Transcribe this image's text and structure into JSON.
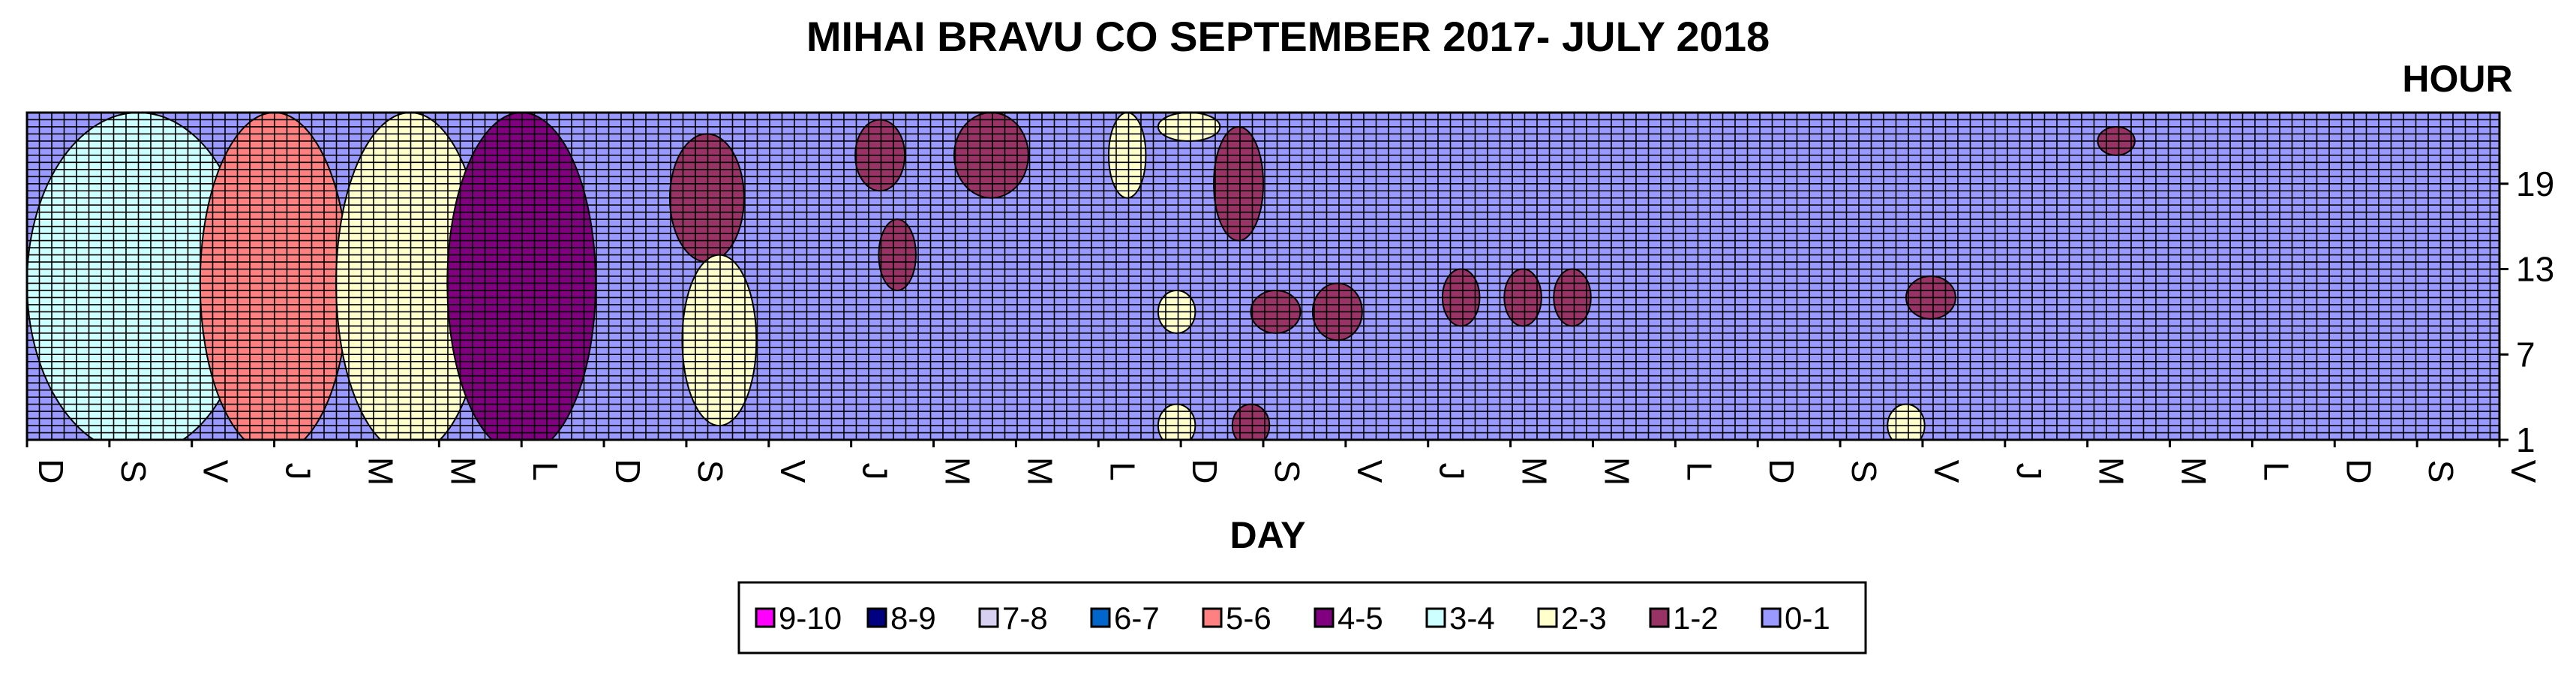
{
  "chart_data": {
    "type": "heatmap",
    "title": "MIHAI BRAVU CO SEPTEMBER 2017- JULY 2018",
    "xlabel": "DAY",
    "ylabel": "HOUR",
    "x_tick_labels": [
      "D",
      "S",
      "V",
      "J",
      "M",
      "M",
      "L",
      "D",
      "S",
      "V",
      "J",
      "M",
      "M",
      "L",
      "D",
      "S",
      "V",
      "J",
      "M",
      "M",
      "L",
      "D",
      "S",
      "V",
      "J",
      "M",
      "M",
      "L",
      "D",
      "S",
      "V"
    ],
    "y_tick_labels": [
      "1",
      "7",
      "13",
      "19"
    ],
    "y_tick_values": [
      1,
      7,
      13,
      19
    ],
    "ylim": [
      1,
      24
    ],
    "grid": true,
    "legend_position": "bottom",
    "legend": [
      {
        "label": "9-10",
        "color": "#ff00ff"
      },
      {
        "label": "8-9",
        "color": "#000080"
      },
      {
        "label": "7-8",
        "color": "#d8d0f0"
      },
      {
        "label": "6-7",
        "color": "#0066cc"
      },
      {
        "label": "5-6",
        "color": "#ff8080"
      },
      {
        "label": "4-5",
        "color": "#800080"
      },
      {
        "label": "3-4",
        "color": "#ccffff"
      },
      {
        "label": "2-3",
        "color": "#ffffcc"
      },
      {
        "label": "1-2",
        "color": "#993366"
      },
      {
        "label": "0-1",
        "color": "#9999ff"
      }
    ],
    "background_level": "0-1",
    "hotspots": [
      {
        "day_frac": 0.045,
        "hour": 12,
        "w": 0.09,
        "h": 24,
        "level": "3-4"
      },
      {
        "day_frac": 0.1,
        "hour": 12,
        "w": 0.06,
        "h": 24,
        "level": "5-6"
      },
      {
        "day_frac": 0.155,
        "hour": 12,
        "w": 0.06,
        "h": 24,
        "level": "2-3"
      },
      {
        "day_frac": 0.2,
        "hour": 12,
        "w": 0.06,
        "h": 24,
        "level": "4-5"
      },
      {
        "day_frac": 0.275,
        "hour": 18,
        "w": 0.03,
        "h": 9,
        "level": "1-2"
      },
      {
        "day_frac": 0.28,
        "hour": 8,
        "w": 0.03,
        "h": 12,
        "level": "2-3"
      },
      {
        "day_frac": 0.345,
        "hour": 21,
        "w": 0.02,
        "h": 5,
        "level": "1-2"
      },
      {
        "day_frac": 0.352,
        "hour": 14,
        "w": 0.015,
        "h": 5,
        "level": "1-2"
      },
      {
        "day_frac": 0.39,
        "hour": 21,
        "w": 0.03,
        "h": 6,
        "level": "1-2"
      },
      {
        "day_frac": 0.445,
        "hour": 21,
        "w": 0.015,
        "h": 6,
        "level": "2-3"
      },
      {
        "day_frac": 0.47,
        "hour": 23,
        "w": 0.025,
        "h": 2,
        "level": "2-3"
      },
      {
        "day_frac": 0.49,
        "hour": 19,
        "w": 0.02,
        "h": 8,
        "level": "1-2"
      },
      {
        "day_frac": 0.465,
        "hour": 10,
        "w": 0.015,
        "h": 3,
        "level": "2-3"
      },
      {
        "day_frac": 0.505,
        "hour": 10,
        "w": 0.02,
        "h": 3,
        "level": "1-2"
      },
      {
        "day_frac": 0.53,
        "hour": 10,
        "w": 0.02,
        "h": 4,
        "level": "1-2"
      },
      {
        "day_frac": 0.58,
        "hour": 11,
        "w": 0.015,
        "h": 4,
        "level": "1-2"
      },
      {
        "day_frac": 0.605,
        "hour": 11,
        "w": 0.015,
        "h": 4,
        "level": "1-2"
      },
      {
        "day_frac": 0.625,
        "hour": 11,
        "w": 0.015,
        "h": 4,
        "level": "1-2"
      },
      {
        "day_frac": 0.465,
        "hour": 2,
        "w": 0.015,
        "h": 3,
        "level": "2-3"
      },
      {
        "day_frac": 0.495,
        "hour": 2,
        "w": 0.015,
        "h": 3,
        "level": "1-2"
      },
      {
        "day_frac": 0.76,
        "hour": 2,
        "w": 0.015,
        "h": 3,
        "level": "2-3"
      },
      {
        "day_frac": 0.77,
        "hour": 11,
        "w": 0.02,
        "h": 3,
        "level": "1-2"
      },
      {
        "day_frac": 0.845,
        "hour": 22,
        "w": 0.015,
        "h": 2,
        "level": "1-2"
      }
    ]
  }
}
